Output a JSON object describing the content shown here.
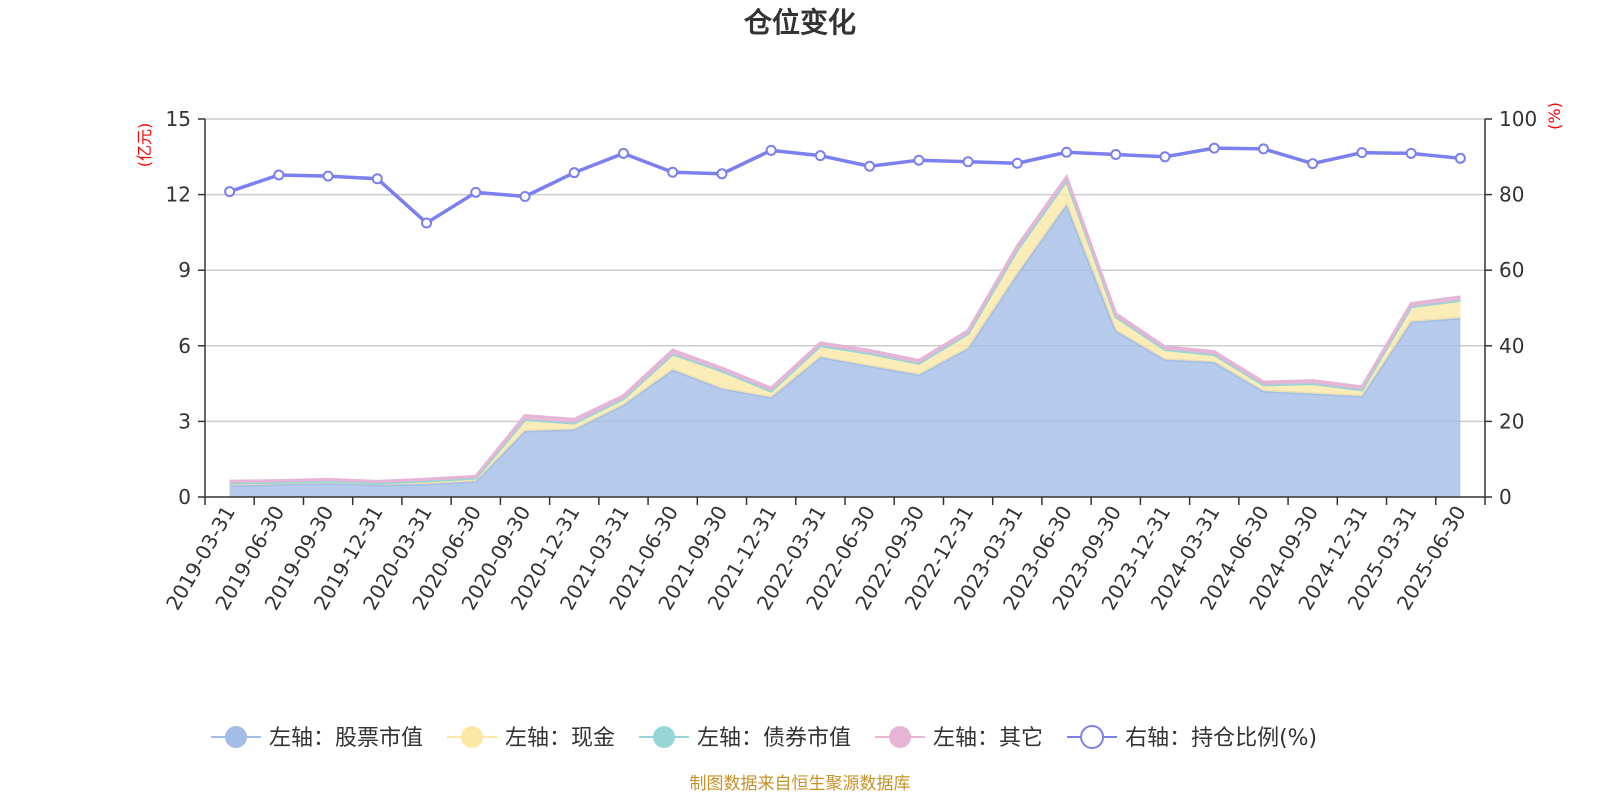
{
  "chart_data": {
    "type": "area",
    "title": "仓位变化",
    "y_left_unit": "(亿元)",
    "y_right_unit": "(%)",
    "y_left_ticks": [
      "0",
      "3",
      "6",
      "9",
      "12",
      "15"
    ],
    "y_right_ticks": [
      "0",
      "20",
      "40",
      "60",
      "80",
      "100"
    ],
    "ylim_left": [
      0,
      15
    ],
    "ylim_right": [
      0,
      100
    ],
    "grid": true,
    "legend_position": "bottom",
    "categories": [
      "2019-03-31",
      "2019-06-30",
      "2019-09-30",
      "2019-12-31",
      "2020-03-31",
      "2020-06-30",
      "2020-09-30",
      "2020-12-31",
      "2021-03-31",
      "2021-06-30",
      "2021-09-30",
      "2021-12-31",
      "2022-03-31",
      "2022-06-30",
      "2022-09-30",
      "2022-12-31",
      "2023-03-31",
      "2023-06-30",
      "2023-09-30",
      "2023-12-31",
      "2024-03-31",
      "2024-06-30",
      "2024-09-30",
      "2024-12-31",
      "2025-03-31",
      "2025-06-30"
    ],
    "series": [
      {
        "name": "左轴：股票市值",
        "axis": "left",
        "kind": "stacked-area",
        "color": "#a4bde6",
        "values": [
          0.45,
          0.5,
          0.55,
          0.48,
          0.52,
          0.62,
          2.62,
          2.68,
          3.65,
          5.05,
          4.3,
          3.95,
          5.55,
          5.2,
          4.85,
          5.9,
          8.85,
          11.6,
          6.6,
          5.45,
          5.35,
          4.2,
          4.1,
          4.0,
          6.95,
          7.1
        ]
      },
      {
        "name": "左轴：现金",
        "axis": "left",
        "kind": "stacked-area",
        "color": "#fbe8a6",
        "values": [
          0.1,
          0.08,
          0.08,
          0.07,
          0.12,
          0.13,
          0.45,
          0.25,
          0.25,
          0.62,
          0.7,
          0.25,
          0.45,
          0.5,
          0.45,
          0.58,
          0.95,
          0.95,
          0.55,
          0.4,
          0.3,
          0.25,
          0.4,
          0.25,
          0.6,
          0.7
        ]
      },
      {
        "name": "左轴：债券市值",
        "axis": "left",
        "kind": "stacked-area",
        "color": "#96d6d6",
        "values": [
          0,
          0,
          0,
          0,
          0,
          0,
          0,
          0,
          0,
          0,
          0,
          0,
          0,
          0,
          0,
          0,
          0,
          0,
          0,
          0,
          0,
          0,
          0,
          0,
          0,
          0
        ]
      },
      {
        "name": "左轴：其它",
        "axis": "left",
        "kind": "stacked-area",
        "color": "#e6b4d6",
        "values": [
          0.08,
          0.07,
          0.07,
          0.07,
          0.07,
          0.07,
          0.16,
          0.15,
          0.12,
          0.16,
          0.12,
          0.12,
          0.12,
          0.12,
          0.12,
          0.12,
          0.16,
          0.15,
          0.12,
          0.11,
          0.12,
          0.11,
          0.12,
          0.12,
          0.13,
          0.14
        ]
      },
      {
        "name": "右轴：持仓比例(%)",
        "axis": "right",
        "kind": "line",
        "color": "#7b7ff0",
        "values": [
          80.8,
          85.2,
          84.9,
          84.2,
          72.5,
          80.6,
          79.5,
          85.8,
          90.9,
          85.9,
          85.5,
          91.7,
          90.3,
          87.5,
          89.1,
          88.7,
          88.3,
          91.2,
          90.6,
          90.0,
          92.3,
          92.1,
          88.2,
          91.1,
          90.9,
          89.6
        ]
      }
    ],
    "source_note": "制图数据来自恒生聚源数据库"
  }
}
